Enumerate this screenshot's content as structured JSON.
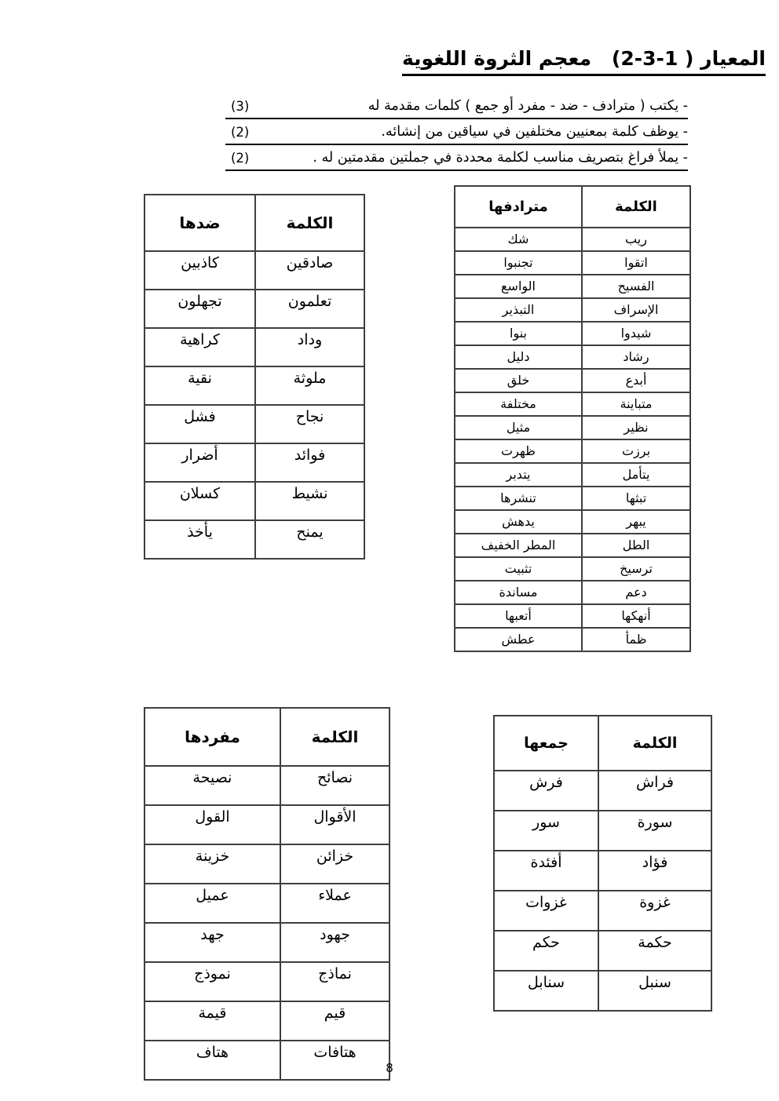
{
  "page": {
    "number": "8"
  },
  "header": {
    "title": {
      "part1": "المعيار ( 1-3-2)",
      "part2": "معجم الثروة اللغوية"
    },
    "bullets": [
      {
        "text": "- يكتب ( مترادف  - ضد  -  مفرد أو جمع  ) كلمات مقدمة له",
        "mark": "(3)"
      },
      {
        "text": "- يوظف كلمة بمعنيين مختلفين في سياقين من إنشائه.",
        "mark": "(2)"
      },
      {
        "text": "- يملأ فراغ بتصريف مناسب لكلمة محددة في جملتين مقدمتين له .",
        "mark": "(2)"
      }
    ]
  },
  "tables": {
    "antonyms": {
      "headers": [
        "الكلمة",
        "ضدها"
      ],
      "rows": [
        [
          "صادقين",
          "كاذبين"
        ],
        [
          "تعلمون",
          "تجهلون"
        ],
        [
          "وداد",
          "كراهية"
        ],
        [
          "ملوثة",
          "نقية"
        ],
        [
          "نجاح",
          "فشل"
        ],
        [
          "فوائد",
          "أضرار"
        ],
        [
          "نشيط",
          "كسلان"
        ],
        [
          "يمنح",
          "يأخذ"
        ]
      ]
    },
    "synonyms": {
      "headers": [
        "الكلمة",
        "مترادفها"
      ],
      "rows": [
        [
          "ريب",
          "شك"
        ],
        [
          "اتقوا",
          "تجنبوا"
        ],
        [
          "الفسيح",
          "الواسع"
        ],
        [
          "الإسراف",
          "التبذير"
        ],
        [
          "شيدوا",
          "بنوا"
        ],
        [
          "رشاد",
          "دليل"
        ],
        [
          "أبدع",
          "خلق"
        ],
        [
          "متباينة",
          "مختلفة"
        ],
        [
          "نظير",
          "مثيل"
        ],
        [
          "برزت",
          "ظهرت"
        ],
        [
          "يتأمل",
          "يتدبر"
        ],
        [
          "تبثها",
          "تنشرها"
        ],
        [
          "يبهر",
          "يدهش"
        ],
        [
          "الطل",
          "المطر الخفيف"
        ],
        [
          "ترسيخ",
          "تثبيت"
        ],
        [
          "دعم",
          "مساندة"
        ],
        [
          "أنهكها",
          "أتعبها"
        ],
        [
          "ظمأ",
          "عطش"
        ]
      ]
    },
    "singulars": {
      "headers": [
        "الكلمة",
        "مفردها"
      ],
      "rows": [
        [
          "نصائح",
          "نصيحة"
        ],
        [
          "الأقوال",
          "القول"
        ],
        [
          "خزائن",
          "خزينة"
        ],
        [
          "عملاء",
          "عميل"
        ],
        [
          "جهود",
          "جهد"
        ],
        [
          "نماذج",
          "نموذج"
        ],
        [
          "قيم",
          "قيمة"
        ],
        [
          "هتافات",
          "هتاف"
        ]
      ]
    },
    "plurals": {
      "headers": [
        "الكلمة",
        "جمعها"
      ],
      "rows": [
        [
          "فراش",
          "فرش"
        ],
        [
          "سورة",
          "سور"
        ],
        [
          "فؤاد",
          "أفئدة"
        ],
        [
          "غزوة",
          "غزوات"
        ],
        [
          "حكمة",
          "حكم"
        ],
        [
          "سنبل",
          "سنابل"
        ]
      ]
    }
  }
}
